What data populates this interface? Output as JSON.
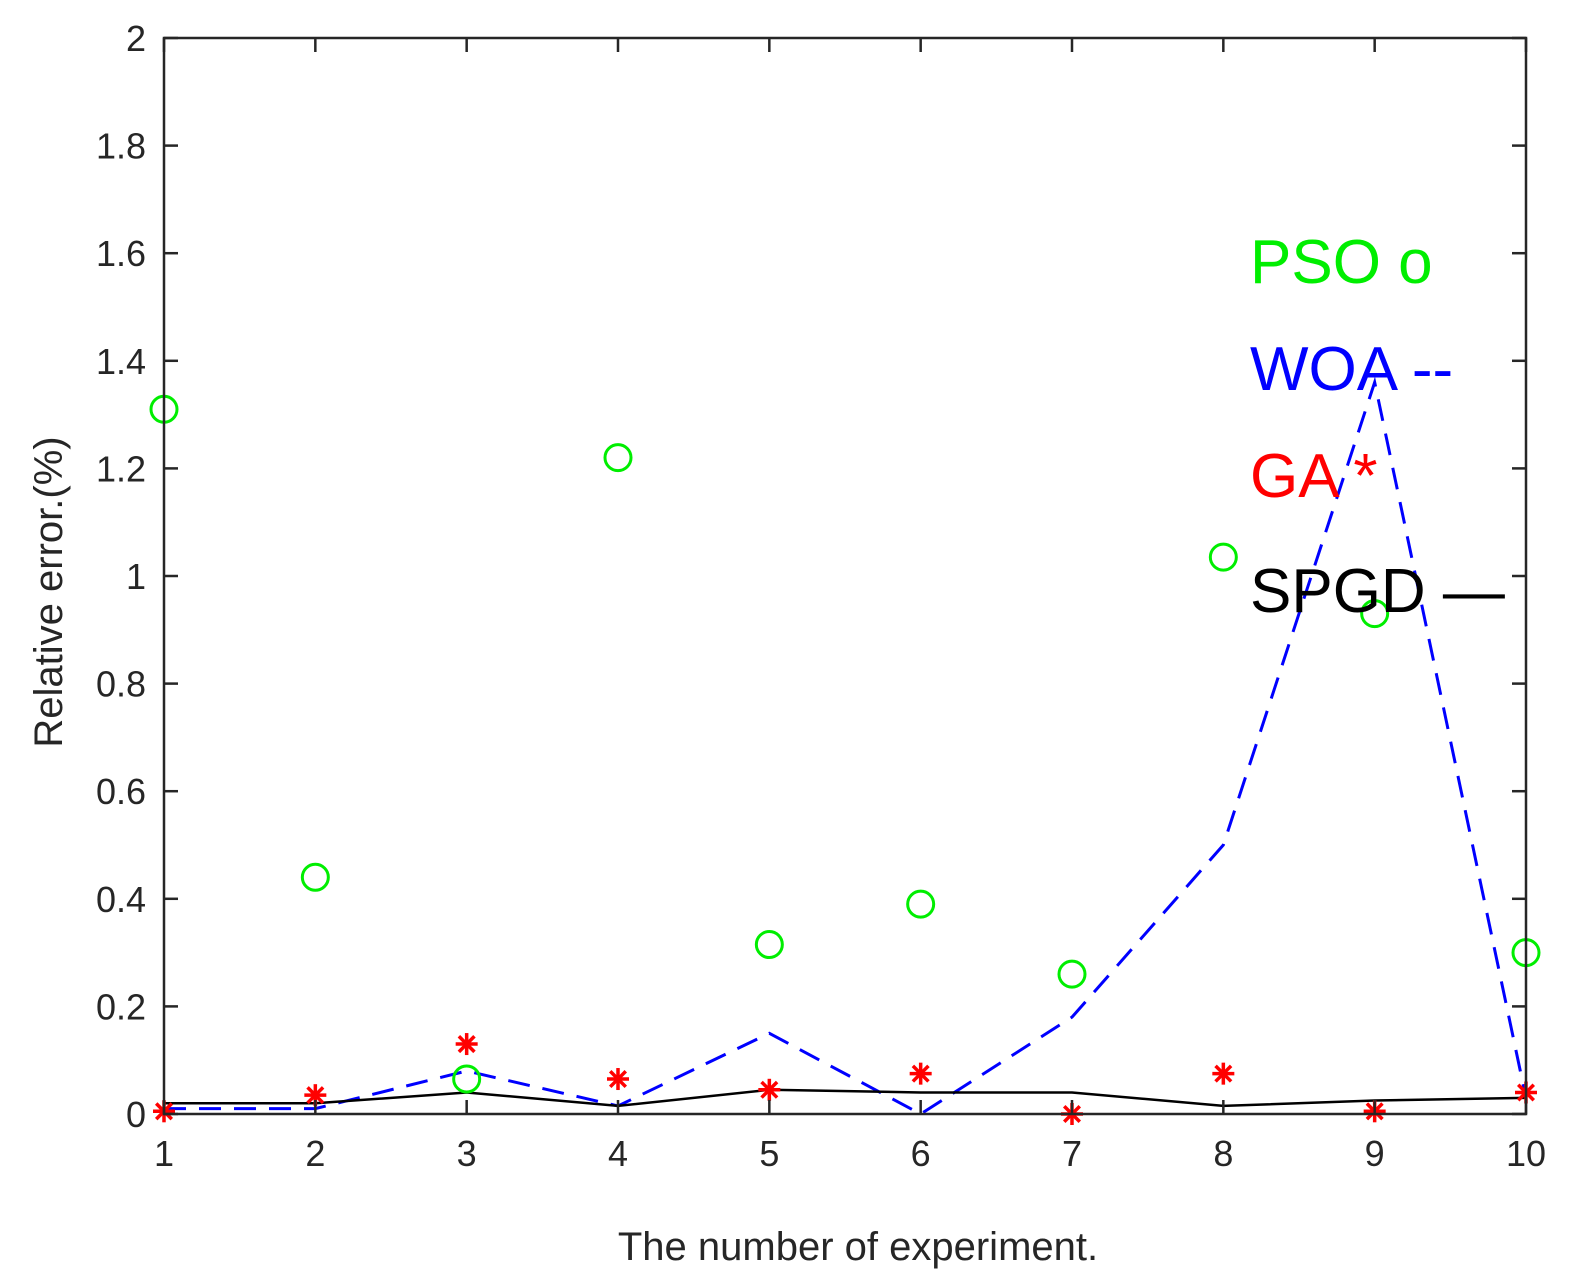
{
  "chart_data": {
    "type": "line",
    "xlabel": "The number of experiment.",
    "ylabel": "Relative error.(%)",
    "x": [
      1,
      2,
      3,
      4,
      5,
      6,
      7,
      8,
      9,
      10
    ],
    "xlim": [
      1,
      10
    ],
    "ylim": [
      0,
      2
    ],
    "xticks": [
      "1",
      "2",
      "3",
      "4",
      "5",
      "6",
      "7",
      "8",
      "9",
      "10"
    ],
    "yticks": [
      {
        "value": 0,
        "label": "0"
      },
      {
        "value": 0.2,
        "label": "0.2"
      },
      {
        "value": 0.4,
        "label": "0.4"
      },
      {
        "value": 0.6,
        "label": "0.6"
      },
      {
        "value": 0.8,
        "label": "0.8"
      },
      {
        "value": 1,
        "label": "1"
      },
      {
        "value": 1.2,
        "label": "1.2"
      },
      {
        "value": 1.4,
        "label": "1.4"
      },
      {
        "value": 1.6,
        "label": "1.6"
      },
      {
        "value": 1.8,
        "label": "1.8"
      },
      {
        "value": 2,
        "label": "2"
      }
    ],
    "grid": false,
    "series": [
      {
        "name": "PSO",
        "legend_label": "PSO o",
        "color": "#00ee00",
        "style": "marker-circle",
        "values": [
          1.31,
          0.44,
          0.065,
          1.22,
          0.315,
          0.39,
          0.26,
          1.035,
          0.93,
          0.3
        ]
      },
      {
        "name": "WOA",
        "legend_label": "WOA --",
        "color": "#0000ff",
        "style": "dashed",
        "values": [
          0.01,
          0.01,
          0.08,
          0.015,
          0.15,
          0.0,
          0.18,
          0.5,
          1.36,
          0.03
        ]
      },
      {
        "name": "GA",
        "legend_label": "GA *",
        "color": "#ff0000",
        "style": "marker-star",
        "values": [
          0.005,
          0.035,
          0.13,
          0.065,
          0.045,
          0.075,
          0.0,
          0.075,
          0.005,
          0.04
        ]
      },
      {
        "name": "SPGD",
        "legend_label": "SPGD —",
        "color": "#000000",
        "style": "solid",
        "values": [
          0.02,
          0.02,
          0.04,
          0.015,
          0.045,
          0.04,
          0.04,
          0.015,
          0.025,
          0.03
        ]
      }
    ]
  }
}
